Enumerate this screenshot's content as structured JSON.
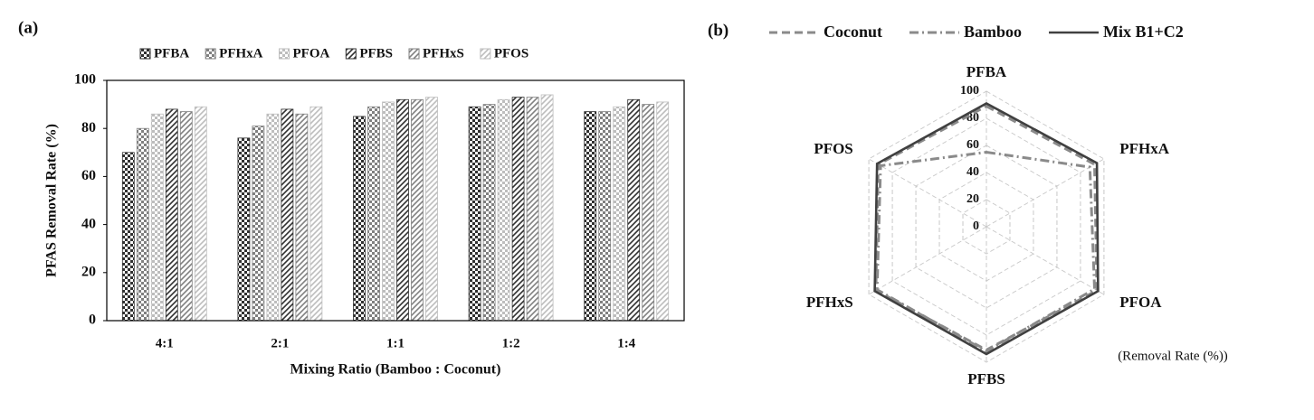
{
  "chart_data": [
    {
      "type": "bar",
      "panel_label": "(a)",
      "xlabel": "Mixing Ratio (Bamboo : Coconut)",
      "ylabel": "PFAS Removal Rate (%)",
      "categories": [
        "4:1",
        "2:1",
        "1:1",
        "1:2",
        "1:4"
      ],
      "series": [
        {
          "name": "PFBA",
          "color": "#303030",
          "pattern": "checker",
          "values": [
            70,
            76,
            85,
            89,
            87
          ]
        },
        {
          "name": "PFHxA",
          "color": "#808080",
          "pattern": "checker",
          "values": [
            80,
            81,
            89,
            90,
            87
          ]
        },
        {
          "name": "PFOA",
          "color": "#bdbdbd",
          "pattern": "checker",
          "values": [
            86,
            86,
            91,
            92,
            89
          ]
        },
        {
          "name": "PFBS",
          "color": "#303030",
          "pattern": "hatch",
          "values": [
            88,
            88,
            92,
            93,
            92
          ]
        },
        {
          "name": "PFHxS",
          "color": "#808080",
          "pattern": "hatch",
          "values": [
            87,
            86,
            92,
            93,
            90
          ]
        },
        {
          "name": "PFOS",
          "color": "#bdbdbd",
          "pattern": "hatch",
          "values": [
            89,
            89,
            93,
            94,
            91
          ]
        }
      ],
      "ylim": [
        0,
        100
      ],
      "yticks": [
        0,
        20,
        40,
        60,
        80,
        100
      ]
    },
    {
      "type": "radar",
      "panel_label": "(b)",
      "annotation": "(Removal Rate (%))",
      "categories": [
        "PFBA",
        "PFHxA",
        "PFOA",
        "PFBS",
        "PFHxS",
        "PFOS"
      ],
      "series": [
        {
          "name": "Coconut",
          "color": "#8a8a8a",
          "dash": "dashed",
          "values": [
            89,
            92,
            94,
            91,
            94,
            92
          ]
        },
        {
          "name": "Bamboo",
          "color": "#8a8a8a",
          "dash": "dashdot",
          "values": [
            55,
            88,
            92,
            92,
            93,
            90
          ]
        },
        {
          "name": "Mix B1+C2",
          "color": "#404040",
          "dash": "solid",
          "values": [
            91,
            94,
            95,
            94,
            95,
            93
          ]
        }
      ],
      "rlim": [
        0,
        100
      ],
      "rticks": [
        0,
        20,
        40,
        60,
        80,
        100
      ]
    }
  ]
}
